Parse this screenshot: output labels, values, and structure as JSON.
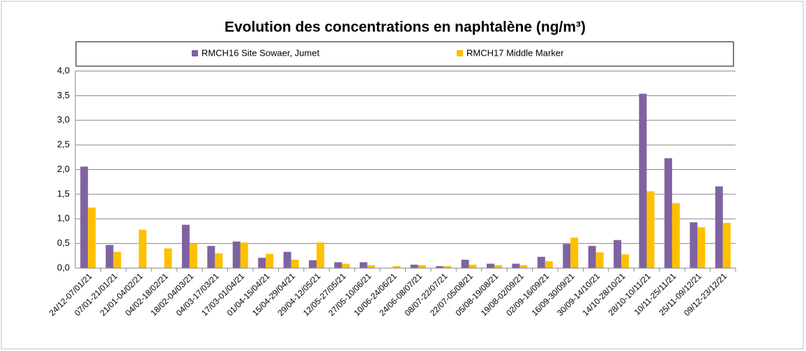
{
  "chart_data": {
    "type": "bar",
    "title": "Evolution des concentrations en naphtalène (ng/m³)",
    "categories": [
      "24/12-07/01/21",
      "07/01-21/01/21",
      "21/01-04/02/21",
      "04/02-18/02/21",
      "18/02-04/03/21",
      "04/03-17/03/21",
      "17/03-01/04/21",
      "01/04-15/04/21",
      "15/04-29/04/21",
      "29/04-12/05/21",
      "12/05-27/05/21",
      "27/05-10/06/21",
      "10/06-24/06/21",
      "24/06-08/07/21",
      "08/07-22/07/21",
      "22/07-05/08/21",
      "05/08-19/08/21",
      "19/08-02/09/21",
      "02/09-16/09/21",
      "16/09-30/09/21",
      "30/09-14/10/21",
      "14/10-28/10/21",
      "28/10-10/11/21",
      "10/11-25/11/21",
      "25/11-09/12/21",
      "09/12-23/12/21"
    ],
    "series": [
      {
        "name": "RMCH16 Site Sowaer, Jumet",
        "color": "#7f63a1",
        "values": [
          2.06,
          0.47,
          null,
          null,
          0.88,
          0.45,
          0.54,
          0.21,
          0.33,
          0.16,
          0.12,
          0.12,
          null,
          0.07,
          0.04,
          0.17,
          0.09,
          0.09,
          0.23,
          0.49,
          0.45,
          0.57,
          3.54,
          2.23,
          0.93,
          1.66
        ]
      },
      {
        "name": "RMCH17 Middle Marker",
        "color": "#ffc000",
        "values": [
          1.23,
          0.33,
          0.78,
          0.4,
          0.49,
          0.3,
          0.52,
          0.29,
          0.17,
          0.52,
          0.09,
          0.06,
          0.04,
          0.06,
          0.04,
          0.07,
          0.06,
          0.06,
          0.14,
          0.62,
          0.32,
          0.28,
          1.56,
          1.32,
          0.83,
          0.92
        ]
      }
    ],
    "ylim": [
      0,
      4
    ],
    "yticks": [
      {
        "value": 0,
        "label": "0,0"
      },
      {
        "value": 0.5,
        "label": "0,5"
      },
      {
        "value": 1,
        "label": "1,0"
      },
      {
        "value": 1.5,
        "label": "1,5"
      },
      {
        "value": 2,
        "label": "2,0"
      },
      {
        "value": 2.5,
        "label": "2,5"
      },
      {
        "value": 3,
        "label": "3,0"
      },
      {
        "value": 3.5,
        "label": "3,5"
      },
      {
        "value": 4,
        "label": "4,0"
      }
    ],
    "grid": true,
    "legend": "top"
  }
}
